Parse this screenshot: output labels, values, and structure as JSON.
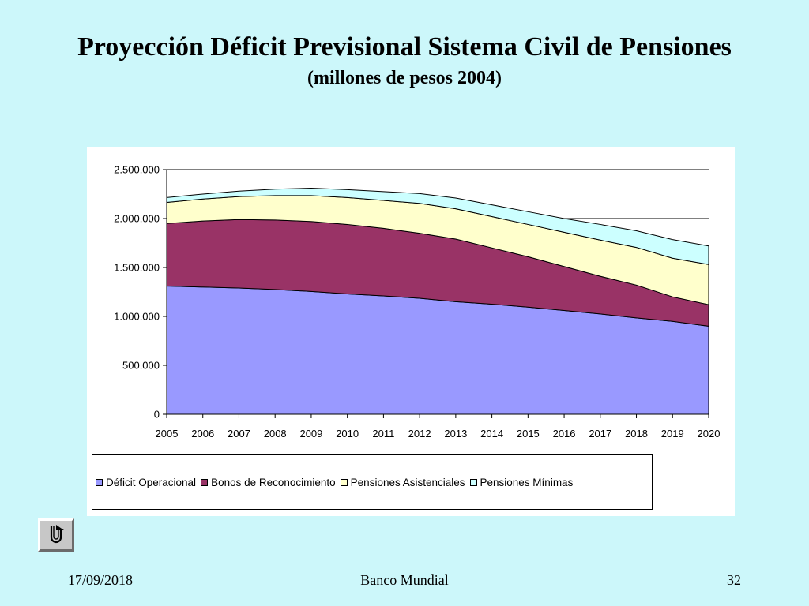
{
  "slide": {
    "title": "Proyección Déficit Previsional Sistema Civil de Pensiones",
    "subtitle": "(millones de pesos 2004)",
    "footer_date": "17/09/2018",
    "footer_center": "Banco Mundial",
    "footer_page": "32",
    "nav_icon": "u-turn-return-icon"
  },
  "chart_data": {
    "type": "area",
    "stacked": true,
    "title": "",
    "xlabel": "",
    "ylabel": "",
    "x": [
      "2005",
      "2006",
      "2007",
      "2008",
      "2009",
      "2010",
      "2011",
      "2012",
      "2013",
      "2014",
      "2015",
      "2016",
      "2017",
      "2018",
      "2019",
      "2020"
    ],
    "ylim": [
      0,
      2500000
    ],
    "yticks": [
      0,
      500000,
      1000000,
      1500000,
      2000000,
      2500000
    ],
    "ytick_labels": [
      "0",
      "500.000",
      "1.000.000",
      "1.500.000",
      "2.000.000",
      "2.500.000"
    ],
    "grid": "horizontal",
    "legend_position": "bottom",
    "series": [
      {
        "name": "Déficit Operacional",
        "color": "#9999ff",
        "values": [
          1310000,
          1300000,
          1290000,
          1275000,
          1255000,
          1230000,
          1210000,
          1185000,
          1150000,
          1125000,
          1095000,
          1060000,
          1025000,
          985000,
          950000,
          900000
        ]
      },
      {
        "name": "Bonos de Reconocimiento",
        "color": "#993366",
        "values": [
          640000,
          675000,
          700000,
          710000,
          715000,
          710000,
          690000,
          665000,
          640000,
          575000,
          515000,
          450000,
          385000,
          335000,
          250000,
          220000
        ]
      },
      {
        "name": "Pensiones Asistenciales",
        "color": "#ffffcc",
        "values": [
          215000,
          225000,
          235000,
          250000,
          265000,
          275000,
          285000,
          305000,
          310000,
          320000,
          330000,
          350000,
          370000,
          385000,
          395000,
          410000
        ]
      },
      {
        "name": "Pensiones Mínimas",
        "color": "#ccffff",
        "values": [
          50000,
          50000,
          55000,
          65000,
          75000,
          80000,
          90000,
          100000,
          110000,
          120000,
          130000,
          140000,
          160000,
          170000,
          190000,
          190000
        ]
      }
    ]
  }
}
